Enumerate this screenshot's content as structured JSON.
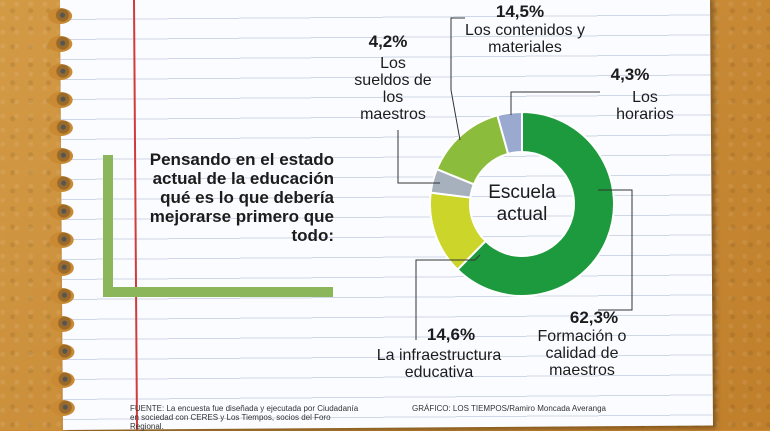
{
  "question": "Pensando en el estado actual de la educación qué es lo que debería mejorarse primero que todo:",
  "chart_data": {
    "type": "pie",
    "center_label": [
      "Escuela",
      "actual"
    ],
    "slices": [
      {
        "label": [
          "Formación o",
          "calidad de",
          "maestros"
        ],
        "value": 62.3,
        "pct_label": "62,3%",
        "color": "#1e9a3e"
      },
      {
        "label": [
          "La infraestructura",
          "educativa"
        ],
        "value": 14.6,
        "pct_label": "14,6%",
        "color": "#cbd52a"
      },
      {
        "label": [
          "Los",
          "sueldos de",
          "los",
          "maestros"
        ],
        "value": 4.2,
        "pct_label": "4,2%",
        "color": "#a7b1bd"
      },
      {
        "label": [
          "Los contenidos y",
          "materiales"
        ],
        "value": 14.5,
        "pct_label": "14,5%",
        "color": "#8cbc3c"
      },
      {
        "label": [
          "Los",
          "horarios"
        ],
        "value": 4.3,
        "pct_label": "4,3%",
        "color": "#9aa9cf"
      }
    ]
  },
  "footer": {
    "source": "FUENTE: La encuesta fue diseñada y ejecutada por Ciudadanía en sociedad con CERES y Los Tiempos, socios del Foro Regional.",
    "graphic": "GRÁFICO: LOS TIEMPOS/Ramiro Moncada Averanga"
  }
}
